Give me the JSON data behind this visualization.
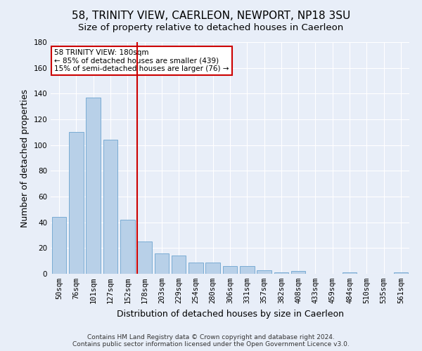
{
  "title": "58, TRINITY VIEW, CAERLEON, NEWPORT, NP18 3SU",
  "subtitle": "Size of property relative to detached houses in Caerleon",
  "xlabel": "Distribution of detached houses by size in Caerleon",
  "ylabel": "Number of detached properties",
  "bar_labels": [
    "50sqm",
    "76sqm",
    "101sqm",
    "127sqm",
    "152sqm",
    "178sqm",
    "203sqm",
    "229sqm",
    "254sqm",
    "280sqm",
    "306sqm",
    "331sqm",
    "357sqm",
    "382sqm",
    "408sqm",
    "433sqm",
    "459sqm",
    "484sqm",
    "510sqm",
    "535sqm",
    "561sqm"
  ],
  "bar_values": [
    44,
    110,
    137,
    104,
    42,
    25,
    16,
    14,
    9,
    9,
    6,
    6,
    3,
    1,
    2,
    0,
    0,
    1,
    0,
    0,
    1
  ],
  "bar_color": "#b8d0e8",
  "bar_edge_color": "#7aacd4",
  "redline_x": 5,
  "annotation_text": "58 TRINITY VIEW: 180sqm\n← 85% of detached houses are smaller (439)\n15% of semi-detached houses are larger (76) →",
  "annotation_box_color": "#ffffff",
  "annotation_box_edge": "#cc0000",
  "ylim": [
    0,
    180
  ],
  "yticks": [
    0,
    20,
    40,
    60,
    80,
    100,
    120,
    140,
    160,
    180
  ],
  "background_color": "#e8eef8",
  "grid_color": "#ffffff",
  "footer_text": "Contains HM Land Registry data © Crown copyright and database right 2024.\nContains public sector information licensed under the Open Government Licence v3.0.",
  "title_fontsize": 11,
  "subtitle_fontsize": 9.5,
  "axis_label_fontsize": 9,
  "tick_fontsize": 7.5,
  "footer_fontsize": 6.5
}
